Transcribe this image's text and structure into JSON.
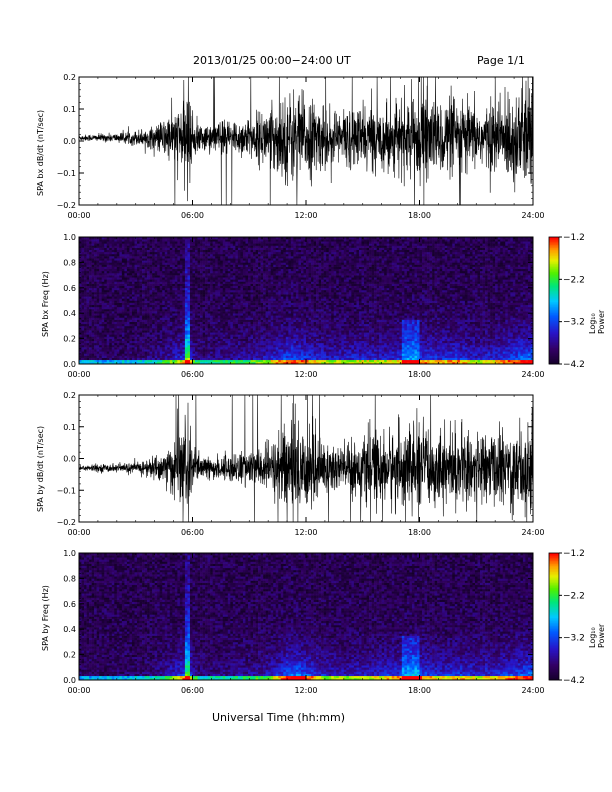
{
  "header": {
    "title": "2013/01/25  00:00−24:00 UT",
    "page": "Page 1/1"
  },
  "xaxis": {
    "label": "Universal Time (hh:mm)",
    "ticks": [
      "00:00",
      "06:00",
      "12:00",
      "18:00",
      "24:00"
    ]
  },
  "chart_data": [
    {
      "type": "line",
      "ylabel": "SPA bx dB/dt (nT/sec)",
      "ylim": [
        -0.2,
        0.2
      ],
      "yticks": [
        "0.2",
        "0.1",
        "0.0",
        "−0.1",
        "−0.2"
      ],
      "xlim": [
        "00:00",
        "24:00"
      ],
      "envelope": {
        "hour": [
          0,
          2,
          3,
          4,
          5,
          5.5,
          5.8,
          6,
          6.5,
          7,
          8,
          9,
          10,
          10.5,
          11,
          11.5,
          12,
          13,
          14,
          15,
          16,
          17,
          18,
          19,
          20,
          21,
          22,
          23,
          24
        ],
        "amplitude": [
          0.01,
          0.015,
          0.025,
          0.04,
          0.09,
          0.12,
          0.2,
          0.08,
          0.04,
          0.05,
          0.06,
          0.07,
          0.1,
          0.13,
          0.15,
          0.16,
          0.14,
          0.1,
          0.1,
          0.11,
          0.1,
          0.12,
          0.15,
          0.12,
          0.14,
          0.1,
          0.12,
          0.16,
          0.2
        ]
      },
      "offset": 0.01,
      "color": "#000000"
    },
    {
      "type": "heatmap",
      "ylabel": "SPA bx Freq (Hz)",
      "ylim": [
        0.0,
        1.0
      ],
      "yticks": [
        "1.0",
        "0.8",
        "0.6",
        "0.4",
        "0.2",
        "0.0"
      ],
      "xlim": [
        "00:00",
        "24:00"
      ],
      "colorbar": {
        "label": "Log₁₀ Power",
        "ticks": [
          "−1.2",
          "−2.2",
          "−3.2",
          "−4.2"
        ],
        "range": [
          -4.2,
          -1.2
        ]
      },
      "activity_peaks_hour": [
        5.7,
        17.5,
        23.8
      ]
    },
    {
      "type": "line",
      "ylabel": "SPA by dB/dt (nT/sec)",
      "ylim": [
        -0.2,
        0.2
      ],
      "yticks": [
        "0.2",
        "0.1",
        "0.0",
        "−0.1",
        "−0.2"
      ],
      "xlim": [
        "00:00",
        "24:00"
      ],
      "envelope": {
        "hour": [
          0,
          2,
          3,
          4,
          4.5,
          5,
          5.5,
          5.8,
          6,
          6.5,
          7,
          8,
          9,
          10,
          10.5,
          11,
          11.5,
          12,
          13,
          14,
          15,
          16,
          17,
          18,
          19,
          20,
          21,
          22,
          23,
          24
        ],
        "amplitude": [
          0.01,
          0.015,
          0.02,
          0.04,
          0.06,
          0.1,
          0.14,
          0.2,
          0.08,
          0.04,
          0.04,
          0.05,
          0.06,
          0.08,
          0.12,
          0.18,
          0.2,
          0.16,
          0.1,
          0.09,
          0.1,
          0.12,
          0.14,
          0.15,
          0.12,
          0.13,
          0.11,
          0.12,
          0.15,
          0.18
        ]
      },
      "offset": -0.03,
      "color": "#000000"
    },
    {
      "type": "heatmap",
      "ylabel": "SPA by Freq (Hz)",
      "ylim": [
        0.0,
        1.0
      ],
      "yticks": [
        "1.0",
        "0.8",
        "0.6",
        "0.4",
        "0.2",
        "0.0"
      ],
      "xlim": [
        "00:00",
        "24:00"
      ],
      "colorbar": {
        "label": "Log₁₀ Power",
        "ticks": [
          "−1.2",
          "−2.2",
          "−3.2",
          "−4.2"
        ],
        "range": [
          -4.2,
          -1.2
        ]
      },
      "activity_peaks_hour": [
        5.7,
        17.5,
        23.8
      ]
    }
  ]
}
